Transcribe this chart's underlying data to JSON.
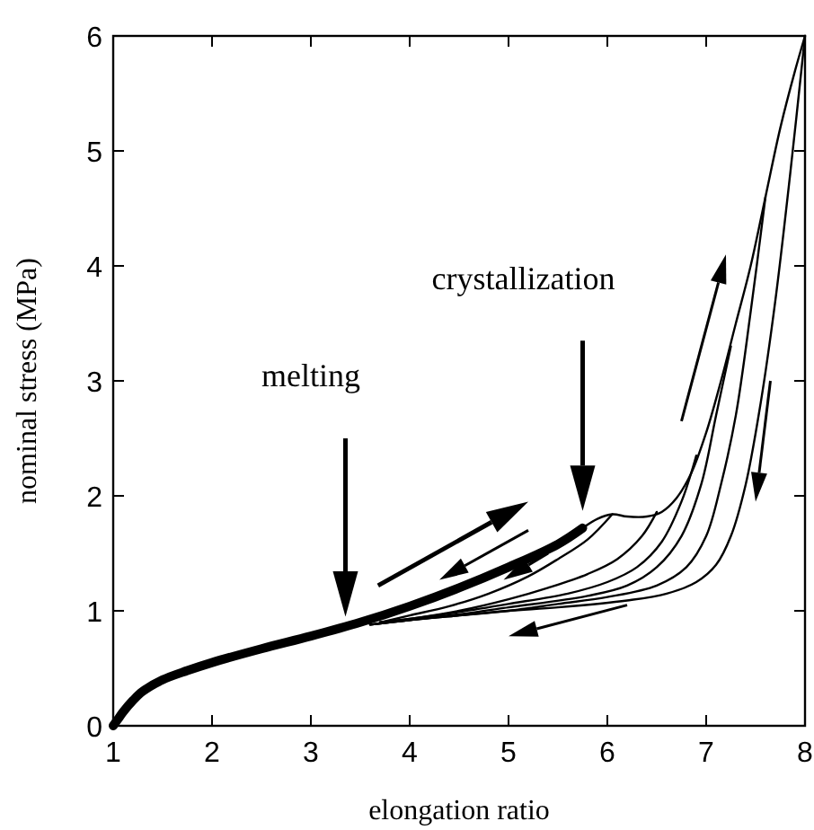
{
  "chart_data": {
    "type": "line",
    "xlabel": "elongation ratio",
    "ylabel": "nominal stress (MPa)",
    "xlim": [
      1,
      8
    ],
    "ylim": [
      0,
      6
    ],
    "xticks": [
      1,
      2,
      3,
      4,
      5,
      6,
      7,
      8
    ],
    "yticks": [
      0,
      1,
      2,
      3,
      4,
      5,
      6
    ],
    "grid": false,
    "marker": "none",
    "line_style": "solid",
    "annotations": [
      "melting",
      "crystallization"
    ],
    "series": [
      {
        "color": "#000000",
        "x": [
          1,
          1.05,
          1.1,
          1.2,
          1.3,
          1.5,
          1.75,
          2,
          2.5,
          3,
          3.5,
          4,
          4.5,
          5,
          5.5,
          5.75
        ],
        "values": [
          0,
          0.06,
          0.12,
          0.22,
          0.3,
          0.4,
          0.48,
          0.55,
          0.67,
          0.78,
          0.9,
          1.04,
          1.2,
          1.38,
          1.58,
          1.72
        ]
      },
      {
        "color": "#000000",
        "x": [
          5.75,
          5.9,
          6.05,
          6.2,
          6.4,
          6.55,
          6.7,
          6.85,
          7,
          7.15,
          7.3,
          7.45,
          7.6,
          7.75,
          7.9,
          8
        ],
        "values": [
          1.72,
          1.8,
          1.84,
          1.82,
          1.82,
          1.86,
          1.98,
          2.2,
          2.55,
          3.0,
          3.5,
          4.0,
          4.6,
          5.2,
          5.7,
          6.0
        ]
      },
      {
        "color": "#000000",
        "x": [
          6.05,
          5.8,
          5.5,
          5.2,
          4.8,
          4.4,
          4,
          3.7
        ],
        "values": [
          1.84,
          1.62,
          1.45,
          1.3,
          1.15,
          1.04,
          0.96,
          0.9
        ]
      },
      {
        "color": "#000000",
        "x": [
          6.5,
          6.35,
          6.1,
          5.8,
          5.4,
          5,
          4.5,
          4,
          3.7
        ],
        "values": [
          1.86,
          1.65,
          1.45,
          1.32,
          1.2,
          1.1,
          1.0,
          0.93,
          0.9
        ]
      },
      {
        "color": "#000000",
        "x": [
          6.9,
          6.75,
          6.55,
          6.3,
          6,
          5.6,
          5,
          4.5,
          4,
          3.7
        ],
        "values": [
          2.35,
          1.95,
          1.6,
          1.38,
          1.25,
          1.15,
          1.06,
          0.99,
          0.93,
          0.9
        ]
      },
      {
        "color": "#000000",
        "x": [
          7.25,
          7.1,
          6.95,
          6.75,
          6.5,
          6.2,
          5.8,
          5,
          4.5,
          4,
          3.6
        ],
        "values": [
          3.3,
          2.7,
          2.1,
          1.65,
          1.38,
          1.22,
          1.13,
          1.03,
          0.97,
          0.92,
          0.88
        ]
      },
      {
        "color": "#000000",
        "x": [
          7.6,
          7.45,
          7.3,
          7.15,
          7,
          6.8,
          6.5,
          6,
          5.5,
          5,
          4.5,
          4,
          3.6
        ],
        "values": [
          4.6,
          3.6,
          2.7,
          2.1,
          1.65,
          1.38,
          1.22,
          1.12,
          1.06,
          1.0,
          0.96,
          0.92,
          0.88
        ]
      },
      {
        "color": "#000000",
        "x": [
          8,
          7.85,
          7.7,
          7.55,
          7.4,
          7.25,
          7.1,
          6.9,
          6.6,
          6.2,
          5.5,
          5,
          4.5,
          4,
          3.6
        ],
        "values": [
          6.0,
          4.8,
          3.7,
          2.8,
          2.1,
          1.65,
          1.4,
          1.25,
          1.15,
          1.09,
          1.03,
          1.0,
          0.96,
          0.92,
          0.88
        ]
      }
    ]
  }
}
